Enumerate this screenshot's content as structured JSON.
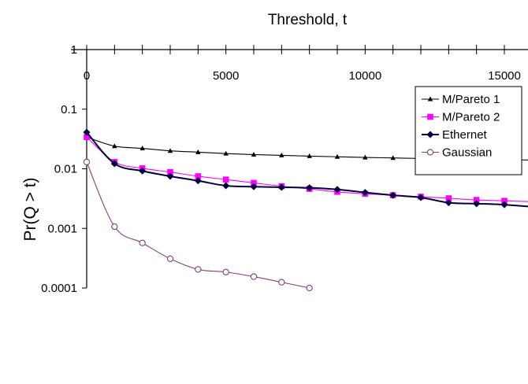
{
  "chart_data": {
    "type": "line",
    "title": "",
    "xlabel": "Threshold, t",
    "ylabel": "Pr(Q > t)",
    "x_axis_position": "top",
    "y_scale": "log",
    "xlim": [
      0,
      15000
    ],
    "ylim": [
      0.0001,
      1
    ],
    "x_ticks": [
      0,
      5000,
      10000,
      15000
    ],
    "x_tick_labels": [
      "0",
      "5000",
      "10000",
      "15000"
    ],
    "y_ticks": [
      1,
      0.1,
      0.01,
      0.001,
      0.0001
    ],
    "y_tick_labels": [
      "1",
      "0.1",
      "0.01",
      "0.001",
      "0.0001"
    ],
    "grid": false,
    "legend_position": "top-right",
    "series": [
      {
        "name": "M/Pareto 1",
        "color": "#000000",
        "marker": "triangle",
        "x": [
          0,
          1000,
          2000,
          3000,
          4000,
          5000,
          6000,
          7000,
          8000,
          9000,
          10000,
          11000,
          12000,
          13000,
          14000,
          15000
        ],
        "y": [
          0.034,
          0.024,
          0.022,
          0.02,
          0.019,
          0.018,
          0.0173,
          0.0168,
          0.0163,
          0.0159,
          0.0155,
          0.0152,
          0.0149,
          0.0146,
          0.0144,
          0.0142
        ]
      },
      {
        "name": "M/Pareto 2",
        "color": "#ff00ff",
        "marker": "square",
        "x": [
          0,
          1000,
          2000,
          3000,
          4000,
          5000,
          6000,
          7000,
          8000,
          9000,
          10000,
          11000,
          12000,
          13000,
          14000,
          15000
        ],
        "y": [
          0.034,
          0.013,
          0.0102,
          0.0088,
          0.0075,
          0.0066,
          0.0058,
          0.0051,
          0.0046,
          0.0041,
          0.0038,
          0.0036,
          0.0034,
          0.0032,
          0.003,
          0.0029
        ]
      },
      {
        "name": "Ethernet",
        "color": "#000040",
        "marker": "diamond",
        "x": [
          0,
          1000,
          2000,
          3000,
          4000,
          5000,
          6000,
          7000,
          8000,
          9000,
          10000,
          11000,
          12000,
          13000,
          14000,
          15000
        ],
        "y": [
          0.041,
          0.0122,
          0.0092,
          0.0075,
          0.0063,
          0.0052,
          0.005,
          0.0049,
          0.0048,
          0.0045,
          0.004,
          0.0036,
          0.0033,
          0.0027,
          0.0026,
          0.0025
        ]
      },
      {
        "name": "Gaussian",
        "color": "#80407f",
        "marker": "circle",
        "x": [
          0,
          1000,
          2000,
          3000,
          4000,
          5000,
          6000,
          7000,
          8000
        ],
        "y": [
          0.013,
          0.00107,
          0.00057,
          0.00031,
          0.000205,
          0.000185,
          0.000155,
          0.000125,
          0.0001
        ]
      }
    ]
  }
}
